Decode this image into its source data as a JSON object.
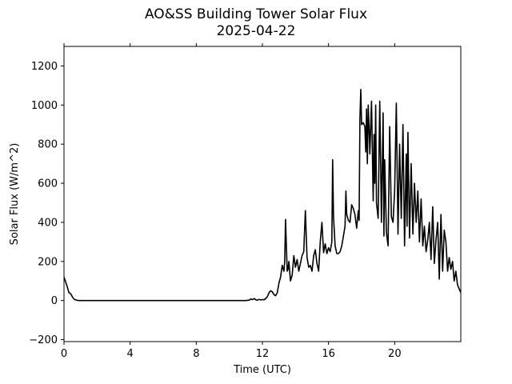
{
  "chart_data": {
    "type": "line",
    "title": "AO&SS Building Tower Solar Flux",
    "subtitle": "2025-04-22",
    "xlabel": "Time (UTC)",
    "ylabel": "Solar Flux (W/m^2)",
    "xlim": [
      0,
      24
    ],
    "ylim": [
      -210,
      1300
    ],
    "xticks": [
      0,
      4,
      8,
      12,
      16,
      20
    ],
    "yticks": [
      -200,
      0,
      200,
      400,
      600,
      800,
      1000,
      1200
    ],
    "grid": false,
    "series": [
      {
        "color": "#000000",
        "x": [
          0.0,
          0.1,
          0.2,
          0.3,
          0.4,
          0.5,
          0.6,
          0.7,
          0.8,
          0.9,
          1.0,
          2.0,
          4.0,
          6.0,
          8.0,
          10.0,
          11.0,
          11.2,
          11.3,
          11.4,
          11.5,
          11.6,
          11.7,
          11.8,
          11.9,
          12.0,
          12.1,
          12.2,
          12.3,
          12.4,
          12.5,
          12.6,
          12.7,
          12.8,
          12.9,
          13.0,
          13.1,
          13.2,
          13.3,
          13.35,
          13.4,
          13.5,
          13.55,
          13.6,
          13.7,
          13.8,
          13.9,
          14.0,
          14.1,
          14.2,
          14.3,
          14.4,
          14.5,
          14.6,
          14.7,
          14.8,
          14.9,
          15.0,
          15.1,
          15.2,
          15.3,
          15.4,
          15.5,
          15.6,
          15.7,
          15.8,
          15.9,
          16.0,
          16.1,
          16.2,
          16.25,
          16.3,
          16.4,
          16.5,
          16.6,
          16.7,
          16.8,
          16.9,
          17.0,
          17.05,
          17.1,
          17.2,
          17.3,
          17.4,
          17.5,
          17.6,
          17.7,
          17.8,
          17.85,
          17.9,
          17.95,
          18.0,
          18.1,
          18.2,
          18.25,
          18.3,
          18.35,
          18.4,
          18.45,
          18.5,
          18.6,
          18.7,
          18.75,
          18.8,
          18.85,
          18.9,
          19.0,
          19.1,
          19.2,
          19.3,
          19.35,
          19.4,
          19.5,
          19.6,
          19.7,
          19.8,
          19.9,
          20.0,
          20.1,
          20.2,
          20.3,
          20.4,
          20.5,
          20.6,
          20.7,
          20.75,
          20.8,
          20.9,
          21.0,
          21.1,
          21.2,
          21.3,
          21.4,
          21.5,
          21.6,
          21.7,
          21.8,
          21.9,
          22.0,
          22.1,
          22.2,
          22.3,
          22.4,
          22.5,
          22.6,
          22.7,
          22.8,
          22.9,
          23.0,
          23.1,
          23.2,
          23.3,
          23.4,
          23.5,
          23.6,
          23.7,
          23.8,
          23.9,
          24.0
        ],
        "y": [
          120,
          95,
          70,
          40,
          35,
          20,
          8,
          3,
          1,
          0,
          0,
          0,
          0,
          0,
          0,
          0,
          0,
          2,
          8,
          5,
          10,
          4,
          2,
          6,
          3,
          5,
          4,
          10,
          20,
          40,
          50,
          45,
          30,
          25,
          40,
          90,
          120,
          180,
          150,
          200,
          415,
          150,
          160,
          200,
          100,
          130,
          230,
          170,
          210,
          150,
          190,
          230,
          250,
          460,
          220,
          170,
          180,
          150,
          230,
          260,
          190,
          150,
          300,
          400,
          245,
          290,
          240,
          270,
          250,
          300,
          720,
          430,
          280,
          240,
          240,
          250,
          280,
          330,
          380,
          560,
          440,
          410,
          400,
          490,
          470,
          440,
          370,
          460,
          410,
          930,
          1080,
          900,
          910,
          890,
          760,
          980,
          700,
          1000,
          890,
          750,
          1020,
          510,
          850,
          600,
          1000,
          500,
          420,
          1020,
          400,
          960,
          330,
          720,
          350,
          280,
          890,
          430,
          400,
          560,
          1010,
          340,
          800,
          420,
          900,
          280,
          750,
          380,
          860,
          320,
          700,
          340,
          600,
          400,
          560,
          300,
          520,
          280,
          380,
          250,
          310,
          400,
          210,
          480,
          190,
          310,
          400,
          110,
          440,
          150,
          360,
          300,
          150,
          220,
          160,
          200,
          100,
          150,
          80,
          60,
          40
        ]
      }
    ]
  }
}
